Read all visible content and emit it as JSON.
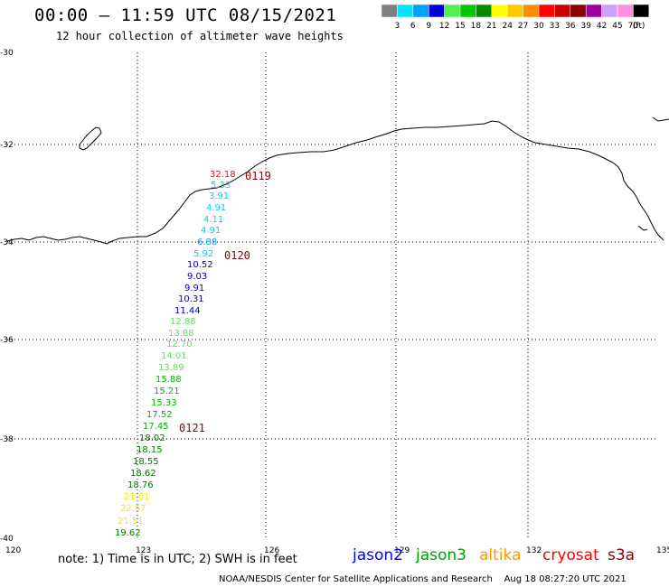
{
  "header": {
    "title": "00:00 – 11:59 UTC 08/15/2021",
    "subtitle": "12 hour collection of altimeter wave heights"
  },
  "legend": {
    "units": "(ft)",
    "bins": [
      {
        "label": "3",
        "color": "#808080"
      },
      {
        "label": "6",
        "color": "#00e5ff"
      },
      {
        "label": "9",
        "color": "#00a0ff"
      },
      {
        "label": "12",
        "color": "#0000e0"
      },
      {
        "label": "15",
        "color": "#50f050"
      },
      {
        "label": "18",
        "color": "#00c800"
      },
      {
        "label": "21",
        "color": "#008c00"
      },
      {
        "label": "24",
        "color": "#ffff00"
      },
      {
        "label": "27",
        "color": "#ffc800"
      },
      {
        "label": "30",
        "color": "#ff8c00"
      },
      {
        "label": "33",
        "color": "#ff0000"
      },
      {
        "label": "36",
        "color": "#c80000"
      },
      {
        "label": "39",
        "color": "#8c0000"
      },
      {
        "label": "42",
        "color": "#a000a0"
      },
      {
        "label": "45",
        "color": "#d0a0ff"
      },
      {
        "label": "70",
        "color": "#ff90e0"
      },
      {
        "label": "",
        "color": "#000000"
      }
    ]
  },
  "axes": {
    "lon": [
      "120",
      "123",
      "126",
      "129",
      "132",
      "135"
    ],
    "lat": [
      "-30",
      "-32",
      "-34",
      "-36",
      "-38",
      "-40"
    ]
  },
  "observations": [
    {
      "value": "32.18",
      "color": "#ff0000"
    },
    {
      "value": "5.33",
      "color": "#00d0e8"
    },
    {
      "value": "3.91",
      "color": "#00d0e8"
    },
    {
      "value": "4.91",
      "color": "#00d0e8"
    },
    {
      "value": "4.11",
      "color": "#00d0e8"
    },
    {
      "value": "4.91",
      "color": "#00d0e8"
    },
    {
      "value": "6.88",
      "color": "#00a0ff"
    },
    {
      "value": "5.92",
      "color": "#00d0e8"
    },
    {
      "value": "10.52",
      "color": "#0000c8"
    },
    {
      "value": "9.03",
      "color": "#0000c8"
    },
    {
      "value": "9.91",
      "color": "#0000c8"
    },
    {
      "value": "10.31",
      "color": "#0000c8"
    },
    {
      "value": "11.44",
      "color": "#0000c8"
    },
    {
      "value": "12.88",
      "color": "#60e060"
    },
    {
      "value": "13.88",
      "color": "#60e060"
    },
    {
      "value": "12.70",
      "color": "#60e060"
    },
    {
      "value": "14.01",
      "color": "#60e060"
    },
    {
      "value": "13.89",
      "color": "#60e060"
    },
    {
      "value": "15.88",
      "color": "#00b400"
    },
    {
      "value": "15.21",
      "color": "#00b400"
    },
    {
      "value": "15.33",
      "color": "#00b400"
    },
    {
      "value": "17.52",
      "color": "#00b400"
    },
    {
      "value": "17.45",
      "color": "#00b400"
    },
    {
      "value": "18.02",
      "color": "#007800"
    },
    {
      "value": "18.15",
      "color": "#007800"
    },
    {
      "value": "18.55",
      "color": "#007800"
    },
    {
      "value": "18.62",
      "color": "#007800"
    },
    {
      "value": "18.76",
      "color": "#007800"
    },
    {
      "value": "21.01",
      "color": "#f0f000"
    },
    {
      "value": "22.57",
      "color": "#f0f000"
    },
    {
      "value": "21.51",
      "color": "#f0f000"
    },
    {
      "value": "19.62",
      "color": "#007800"
    }
  ],
  "time_labels": [
    {
      "value": "0119",
      "color": "#8c0000"
    },
    {
      "value": "0120",
      "color": "#8c0000"
    },
    {
      "value": "0121",
      "color": "#8c0000"
    }
  ],
  "footer": {
    "note": "note: 1) Time is in UTC; 2) SWH is in feet",
    "satellites": [
      {
        "name": "jason2",
        "color": "#0000ff"
      },
      {
        "name": "jason3",
        "color": "#00a000"
      },
      {
        "name": "altika",
        "color": "#ff9900"
      },
      {
        "name": "cryosat",
        "color": "#ff0000"
      },
      {
        "name": "s3a",
        "color": "#8c0000"
      }
    ],
    "credit": "NOAA/NESDIS Center for Satellite Applications and Research    Aug 18 08:27:20 UTC 2021"
  }
}
